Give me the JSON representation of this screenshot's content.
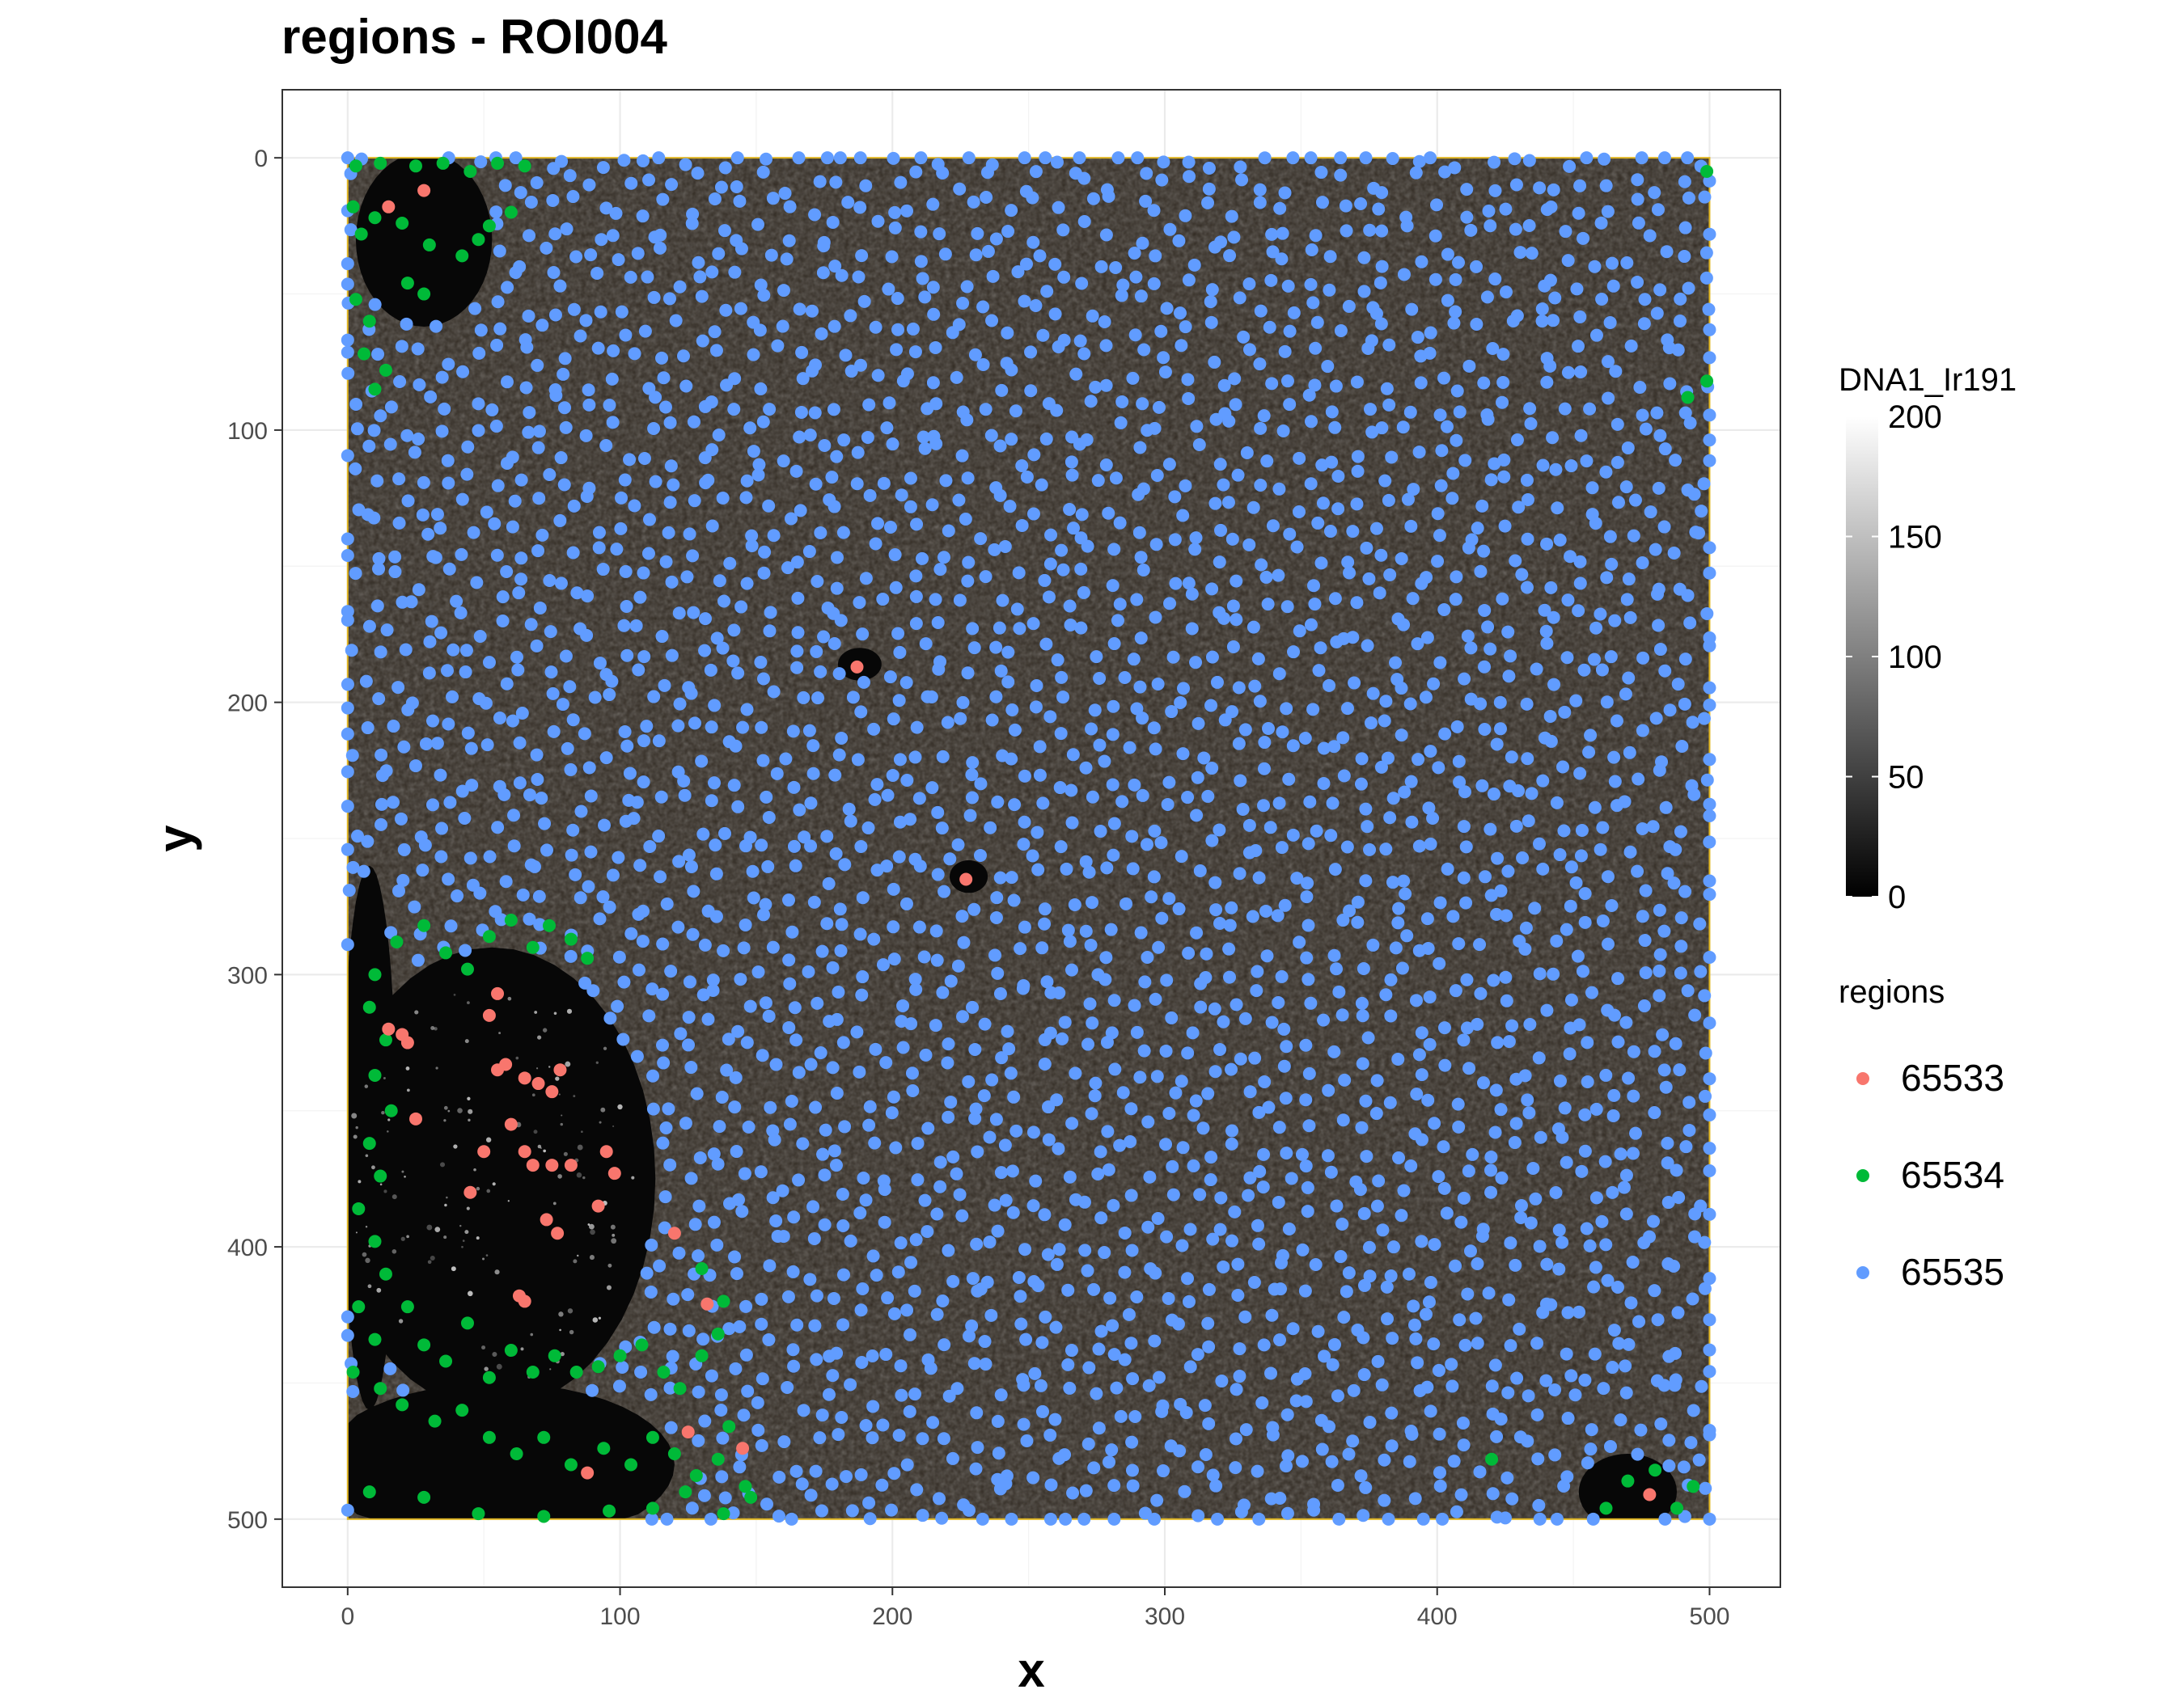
{
  "chart_data": {
    "type": "scatter",
    "title": "regions - ROI004",
    "xlabel": "x",
    "ylabel": "y",
    "xlim": [
      -24,
      526
    ],
    "ylim": [
      -25,
      525
    ],
    "y_reversed": true,
    "grid": true,
    "x_ticks": [
      0,
      100,
      200,
      300,
      400,
      500
    ],
    "y_ticks": [
      0,
      100,
      200,
      300,
      400,
      500
    ],
    "x_tick_labels": [
      "0",
      "100",
      "200",
      "300",
      "400",
      "500"
    ],
    "y_tick_labels": [
      "0",
      "100",
      "200",
      "300",
      "400",
      "500"
    ],
    "image_extent": {
      "x": [
        0,
        500
      ],
      "y": [
        0,
        500
      ]
    },
    "colorbar": {
      "title": "DNA1_Ir191",
      "range": [
        0,
        200
      ],
      "ticks": [
        0,
        50,
        100,
        150,
        200
      ],
      "tick_labels": [
        "0",
        "50",
        "100",
        "150",
        "200"
      ],
      "low_color": "#000000",
      "high_color": "#ffffff"
    },
    "legend": {
      "title": "regions",
      "position": "right",
      "entries": [
        {
          "label": "65533",
          "color": "#f8766d"
        },
        {
          "label": "65534",
          "color": "#00ba38"
        },
        {
          "label": "65535",
          "color": "#619cff"
        }
      ]
    },
    "series": [
      {
        "name": "65533",
        "color": "#f8766d",
        "points": [
          [
            15,
            18
          ],
          [
            28,
            12
          ],
          [
            187,
            187
          ],
          [
            227,
            265
          ],
          [
            52,
            315
          ],
          [
            55,
            307
          ],
          [
            20,
            322
          ],
          [
            22,
            325
          ],
          [
            15,
            320
          ],
          [
            55,
            335
          ],
          [
            58,
            333
          ],
          [
            65,
            338
          ],
          [
            70,
            340
          ],
          [
            75,
            343
          ],
          [
            78,
            335
          ],
          [
            25,
            353
          ],
          [
            60,
            355
          ],
          [
            50,
            365
          ],
          [
            65,
            365
          ],
          [
            68,
            370
          ],
          [
            75,
            370
          ],
          [
            82,
            370
          ],
          [
            95,
            365
          ],
          [
            98,
            373
          ],
          [
            45,
            380
          ],
          [
            92,
            385
          ],
          [
            73,
            390
          ],
          [
            77,
            395
          ],
          [
            120,
            395
          ],
          [
            63,
            418
          ],
          [
            65,
            420
          ],
          [
            132,
            421
          ],
          [
            125,
            468
          ],
          [
            145,
            474
          ],
          [
            88,
            483
          ],
          [
            478,
            491
          ]
        ]
      },
      {
        "name": "65534",
        "color": "#00ba38",
        "points": [
          [
            3,
            3
          ],
          [
            12,
            2
          ],
          [
            25,
            3
          ],
          [
            35,
            2
          ],
          [
            45,
            5
          ],
          [
            55,
            2
          ],
          [
            65,
            3
          ],
          [
            2,
            18
          ],
          [
            5,
            28
          ],
          [
            10,
            22
          ],
          [
            20,
            24
          ],
          [
            30,
            32
          ],
          [
            42,
            36
          ],
          [
            48,
            30
          ],
          [
            52,
            25
          ],
          [
            60,
            20
          ],
          [
            22,
            46
          ],
          [
            28,
            50
          ],
          [
            3,
            52
          ],
          [
            8,
            60
          ],
          [
            6,
            72
          ],
          [
            14,
            78
          ],
          [
            10,
            85
          ],
          [
            499,
            5
          ],
          [
            492,
            88
          ],
          [
            499,
            82
          ],
          [
            18,
            288
          ],
          [
            28,
            282
          ],
          [
            36,
            292
          ],
          [
            44,
            298
          ],
          [
            52,
            286
          ],
          [
            60,
            280
          ],
          [
            68,
            290
          ],
          [
            74,
            282
          ],
          [
            82,
            287
          ],
          [
            88,
            294
          ],
          [
            10,
            300
          ],
          [
            8,
            312
          ],
          [
            14,
            324
          ],
          [
            10,
            337
          ],
          [
            16,
            350
          ],
          [
            8,
            362
          ],
          [
            12,
            374
          ],
          [
            4,
            386
          ],
          [
            10,
            398
          ],
          [
            14,
            410
          ],
          [
            4,
            422
          ],
          [
            10,
            434
          ],
          [
            2,
            446
          ],
          [
            12,
            452
          ],
          [
            22,
            422
          ],
          [
            28,
            436
          ],
          [
            36,
            442
          ],
          [
            44,
            428
          ],
          [
            52,
            448
          ],
          [
            60,
            438
          ],
          [
            68,
            446
          ],
          [
            76,
            440
          ],
          [
            84,
            446
          ],
          [
            92,
            444
          ],
          [
            100,
            440
          ],
          [
            108,
            436
          ],
          [
            116,
            446
          ],
          [
            122,
            452
          ],
          [
            130,
            440
          ],
          [
            136,
            432
          ],
          [
            138,
            420
          ],
          [
            130,
            408
          ],
          [
            20,
            458
          ],
          [
            32,
            464
          ],
          [
            42,
            460
          ],
          [
            52,
            470
          ],
          [
            62,
            476
          ],
          [
            72,
            470
          ],
          [
            82,
            480
          ],
          [
            94,
            474
          ],
          [
            104,
            480
          ],
          [
            112,
            470
          ],
          [
            120,
            476
          ],
          [
            128,
            484
          ],
          [
            136,
            478
          ],
          [
            140,
            466
          ],
          [
            146,
            488
          ],
          [
            8,
            490
          ],
          [
            28,
            492
          ],
          [
            48,
            498
          ],
          [
            72,
            499
          ],
          [
            96,
            497
          ],
          [
            112,
            496
          ],
          [
            124,
            490
          ],
          [
            138,
            498
          ],
          [
            148,
            492
          ],
          [
            420,
            478
          ],
          [
            462,
            496
          ],
          [
            470,
            486
          ],
          [
            480,
            482
          ],
          [
            488,
            496
          ],
          [
            494,
            488
          ]
        ]
      },
      {
        "name": "65535",
        "color": "#619cff",
        "style": "dense-field",
        "count": 3000,
        "excluded_areas": [
          {
            "center": [
              53,
              375
            ],
            "radii": [
              60,
              85
            ]
          },
          {
            "center": [
              28,
              30
            ],
            "radii": [
              25,
              32
            ]
          },
          {
            "center": [
              8,
              360
            ],
            "radii": [
              10,
              100
            ]
          },
          {
            "center": [
              55,
              480
            ],
            "radii": [
              65,
              30
            ]
          },
          {
            "center": [
              470,
              490
            ],
            "radii": [
              18,
              14
            ]
          },
          {
            "center": [
              188,
              186
            ],
            "radii": [
              8,
              6
            ]
          },
          {
            "center": [
              228,
              264
            ],
            "radii": [
              7,
              6
            ]
          }
        ]
      }
    ]
  }
}
